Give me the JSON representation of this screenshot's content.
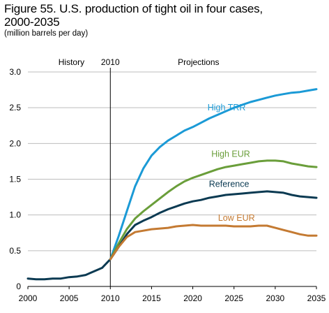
{
  "chart_data": {
    "type": "line",
    "title_line1": "Figure 55. U.S. production of tight oil in four cases,",
    "title_line2": "2000-2035",
    "subtitle": "(million barrels per day)",
    "xlim": [
      2000,
      2035
    ],
    "ylim": [
      0,
      3.0
    ],
    "x_ticks": [
      "2000",
      "2005",
      "2010",
      "2015",
      "2020",
      "2025",
      "2030",
      "2035"
    ],
    "y_ticks": [
      "0",
      "0.5",
      "1.0",
      "1.5",
      "2.0",
      "2.5",
      "3.0"
    ],
    "grid": "horizontal",
    "divider_year": 2010,
    "annotations": {
      "history": "History",
      "divider": "2010",
      "projections": "Projections"
    },
    "history": {
      "color": "#0b3a52",
      "x": [
        2000,
        2001,
        2002,
        2003,
        2004,
        2005,
        2006,
        2007,
        2008,
        2009,
        2010
      ],
      "y": [
        0.11,
        0.1,
        0.1,
        0.11,
        0.11,
        0.13,
        0.14,
        0.16,
        0.21,
        0.26,
        0.38
      ]
    },
    "series": [
      {
        "name": "High TRR",
        "color": "#1b9ad6",
        "x": [
          2010,
          2011,
          2012,
          2013,
          2014,
          2015,
          2016,
          2017,
          2018,
          2019,
          2020,
          2021,
          2022,
          2023,
          2024,
          2025,
          2026,
          2027,
          2028,
          2029,
          2030,
          2031,
          2032,
          2033,
          2034,
          2035
        ],
        "y": [
          0.38,
          0.7,
          1.05,
          1.4,
          1.65,
          1.83,
          1.95,
          2.04,
          2.11,
          2.18,
          2.23,
          2.29,
          2.35,
          2.4,
          2.45,
          2.5,
          2.54,
          2.58,
          2.61,
          2.64,
          2.67,
          2.69,
          2.71,
          2.72,
          2.74,
          2.76
        ]
      },
      {
        "name": "High EUR",
        "color": "#6a9e3a",
        "x": [
          2010,
          2011,
          2012,
          2013,
          2014,
          2015,
          2016,
          2017,
          2018,
          2019,
          2020,
          2021,
          2022,
          2023,
          2024,
          2025,
          2026,
          2027,
          2028,
          2029,
          2030,
          2031,
          2032,
          2033,
          2034,
          2035
        ],
        "y": [
          0.38,
          0.6,
          0.8,
          0.95,
          1.05,
          1.14,
          1.23,
          1.32,
          1.4,
          1.47,
          1.52,
          1.56,
          1.6,
          1.64,
          1.67,
          1.69,
          1.71,
          1.73,
          1.75,
          1.76,
          1.76,
          1.75,
          1.72,
          1.7,
          1.68,
          1.67
        ]
      },
      {
        "name": "Reference",
        "color": "#0b3a52",
        "x": [
          2010,
          2011,
          2012,
          2013,
          2014,
          2015,
          2016,
          2017,
          2018,
          2019,
          2020,
          2021,
          2022,
          2023,
          2024,
          2025,
          2026,
          2027,
          2028,
          2029,
          2030,
          2031,
          2032,
          2033,
          2034,
          2035
        ],
        "y": [
          0.38,
          0.55,
          0.73,
          0.86,
          0.92,
          0.97,
          1.03,
          1.08,
          1.12,
          1.16,
          1.19,
          1.21,
          1.24,
          1.26,
          1.28,
          1.29,
          1.3,
          1.31,
          1.32,
          1.33,
          1.32,
          1.31,
          1.28,
          1.26,
          1.25,
          1.24
        ]
      },
      {
        "name": "Low EUR",
        "color": "#c47a32",
        "x": [
          2010,
          2011,
          2012,
          2013,
          2014,
          2015,
          2016,
          2017,
          2018,
          2019,
          2020,
          2021,
          2022,
          2023,
          2024,
          2025,
          2026,
          2027,
          2028,
          2029,
          2030,
          2031,
          2032,
          2033,
          2034,
          2035
        ],
        "y": [
          0.38,
          0.55,
          0.69,
          0.76,
          0.78,
          0.8,
          0.81,
          0.82,
          0.84,
          0.85,
          0.86,
          0.85,
          0.85,
          0.85,
          0.85,
          0.84,
          0.84,
          0.84,
          0.85,
          0.85,
          0.82,
          0.79,
          0.76,
          0.73,
          0.71,
          0.71
        ]
      }
    ]
  }
}
